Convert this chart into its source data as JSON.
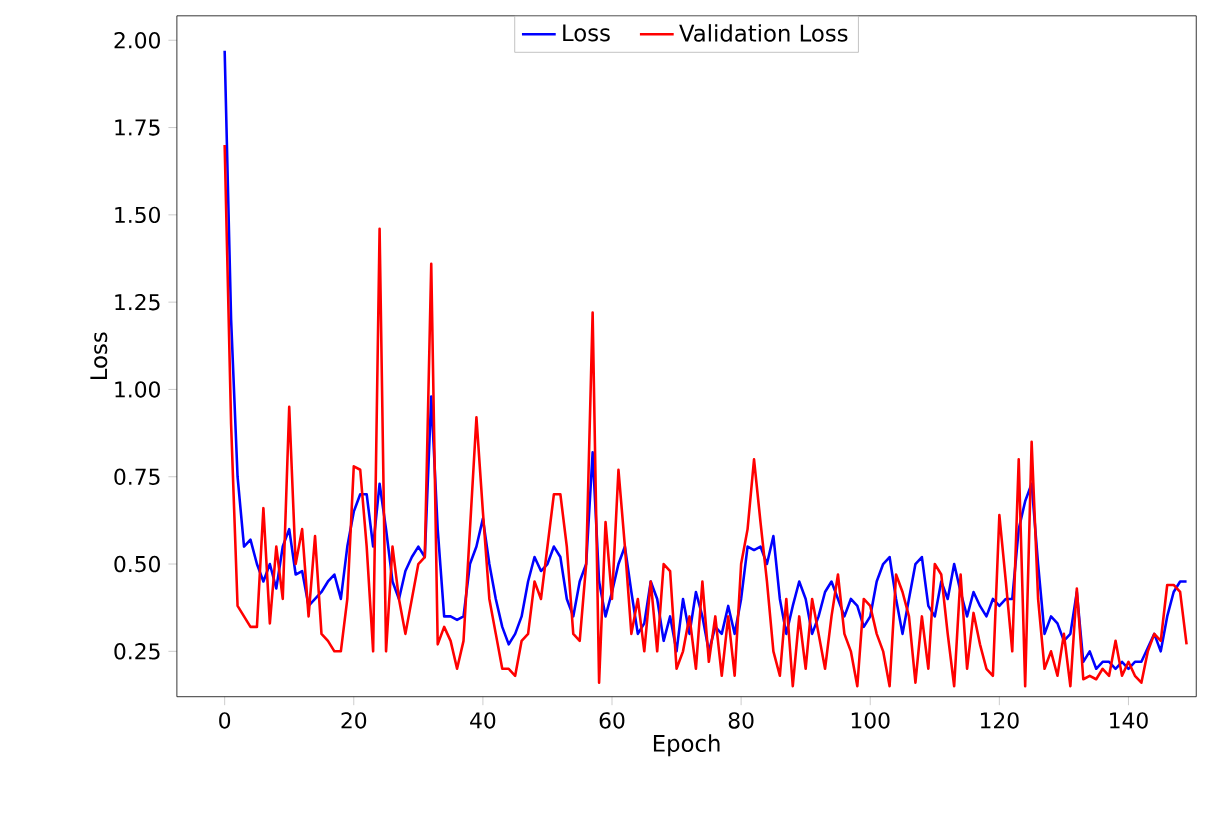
{
  "chart_data": {
    "type": "line",
    "xlabel": "Epoch",
    "ylabel": "Loss",
    "x": [
      0,
      1,
      2,
      3,
      4,
      5,
      6,
      7,
      8,
      9,
      10,
      11,
      12,
      13,
      14,
      15,
      16,
      17,
      18,
      19,
      20,
      21,
      22,
      23,
      24,
      25,
      26,
      27,
      28,
      29,
      30,
      31,
      32,
      33,
      34,
      35,
      36,
      37,
      38,
      39,
      40,
      41,
      42,
      43,
      44,
      45,
      46,
      47,
      48,
      49,
      50,
      51,
      52,
      53,
      54,
      55,
      56,
      57,
      58,
      59,
      60,
      61,
      62,
      63,
      64,
      65,
      66,
      67,
      68,
      69,
      70,
      71,
      72,
      73,
      74,
      75,
      76,
      77,
      78,
      79,
      80,
      81,
      82,
      83,
      84,
      85,
      86,
      87,
      88,
      89,
      90,
      91,
      92,
      93,
      94,
      95,
      96,
      97,
      98,
      99,
      100,
      101,
      102,
      103,
      104,
      105,
      106,
      107,
      108,
      109,
      110,
      111,
      112,
      113,
      114,
      115,
      116,
      117,
      118,
      119,
      120,
      121,
      122,
      123,
      124,
      125,
      126,
      127,
      128,
      129,
      130,
      131,
      132,
      133,
      134,
      135,
      136,
      137,
      138,
      139,
      140,
      141,
      142,
      143,
      144,
      145,
      146,
      147,
      148,
      149
    ],
    "series": [
      {
        "name": "Loss",
        "color": "#0000ff",
        "values": [
          1.97,
          1.2,
          0.75,
          0.55,
          0.57,
          0.5,
          0.45,
          0.5,
          0.43,
          0.55,
          0.6,
          0.47,
          0.48,
          0.38,
          0.4,
          0.42,
          0.45,
          0.47,
          0.4,
          0.55,
          0.65,
          0.7,
          0.7,
          0.55,
          0.73,
          0.6,
          0.45,
          0.4,
          0.48,
          0.52,
          0.55,
          0.52,
          0.98,
          0.6,
          0.35,
          0.35,
          0.34,
          0.35,
          0.5,
          0.55,
          0.63,
          0.5,
          0.4,
          0.32,
          0.27,
          0.3,
          0.35,
          0.45,
          0.52,
          0.48,
          0.5,
          0.55,
          0.52,
          0.4,
          0.35,
          0.45,
          0.5,
          0.82,
          0.45,
          0.35,
          0.42,
          0.5,
          0.55,
          0.42,
          0.3,
          0.33,
          0.45,
          0.4,
          0.28,
          0.35,
          0.25,
          0.4,
          0.3,
          0.42,
          0.35,
          0.25,
          0.32,
          0.3,
          0.38,
          0.3,
          0.4,
          0.55,
          0.54,
          0.55,
          0.5,
          0.58,
          0.4,
          0.3,
          0.38,
          0.45,
          0.4,
          0.3,
          0.35,
          0.42,
          0.45,
          0.4,
          0.35,
          0.4,
          0.38,
          0.32,
          0.35,
          0.45,
          0.5,
          0.52,
          0.4,
          0.3,
          0.4,
          0.5,
          0.52,
          0.38,
          0.35,
          0.45,
          0.4,
          0.5,
          0.42,
          0.35,
          0.42,
          0.38,
          0.35,
          0.4,
          0.38,
          0.4,
          0.4,
          0.6,
          0.68,
          0.73,
          0.5,
          0.3,
          0.35,
          0.33,
          0.28,
          0.3,
          0.42,
          0.22,
          0.25,
          0.2,
          0.22,
          0.22,
          0.2,
          0.22,
          0.2,
          0.22,
          0.22,
          0.26,
          0.3,
          0.25,
          0.35,
          0.42,
          0.45,
          0.45
        ]
      },
      {
        "name": "Validation Loss",
        "color": "#ff0000",
        "values": [
          1.7,
          0.9,
          0.38,
          0.35,
          0.32,
          0.32,
          0.66,
          0.33,
          0.55,
          0.4,
          0.95,
          0.5,
          0.6,
          0.35,
          0.58,
          0.3,
          0.28,
          0.25,
          0.25,
          0.4,
          0.78,
          0.77,
          0.55,
          0.25,
          1.46,
          0.25,
          0.55,
          0.4,
          0.3,
          0.4,
          0.5,
          0.52,
          1.36,
          0.27,
          0.32,
          0.28,
          0.2,
          0.28,
          0.6,
          0.92,
          0.65,
          0.4,
          0.3,
          0.2,
          0.2,
          0.18,
          0.28,
          0.3,
          0.45,
          0.4,
          0.55,
          0.7,
          0.7,
          0.55,
          0.3,
          0.28,
          0.5,
          1.22,
          0.16,
          0.62,
          0.4,
          0.77,
          0.55,
          0.3,
          0.4,
          0.25,
          0.45,
          0.25,
          0.5,
          0.48,
          0.2,
          0.25,
          0.35,
          0.2,
          0.45,
          0.22,
          0.35,
          0.18,
          0.35,
          0.18,
          0.5,
          0.6,
          0.8,
          0.62,
          0.45,
          0.25,
          0.18,
          0.4,
          0.15,
          0.35,
          0.2,
          0.4,
          0.3,
          0.2,
          0.35,
          0.47,
          0.3,
          0.25,
          0.15,
          0.4,
          0.38,
          0.3,
          0.25,
          0.15,
          0.47,
          0.42,
          0.35,
          0.16,
          0.35,
          0.2,
          0.5,
          0.47,
          0.3,
          0.15,
          0.47,
          0.2,
          0.36,
          0.27,
          0.2,
          0.18,
          0.64,
          0.45,
          0.25,
          0.8,
          0.15,
          0.85,
          0.4,
          0.2,
          0.25,
          0.18,
          0.3,
          0.15,
          0.43,
          0.17,
          0.18,
          0.17,
          0.2,
          0.18,
          0.28,
          0.18,
          0.22,
          0.18,
          0.16,
          0.25,
          0.3,
          0.28,
          0.44,
          0.44,
          0.42,
          0.27
        ]
      }
    ],
    "xlim": [
      -7.4,
      150.5
    ],
    "ylim": [
      0.12,
      2.07
    ],
    "xticks": [
      0,
      20,
      40,
      60,
      80,
      100,
      120,
      140
    ],
    "yticks": [
      {
        "value": 0.25,
        "label": "0.25"
      },
      {
        "value": 0.5,
        "label": "0.50"
      },
      {
        "value": 0.75,
        "label": "0.75"
      },
      {
        "value": 1.0,
        "label": "1.00"
      },
      {
        "value": 1.25,
        "label": "1.25"
      },
      {
        "value": 1.5,
        "label": "1.50"
      },
      {
        "value": 1.75,
        "label": "1.75"
      },
      {
        "value": 2.0,
        "label": "2.00"
      }
    ],
    "legend": "top"
  }
}
